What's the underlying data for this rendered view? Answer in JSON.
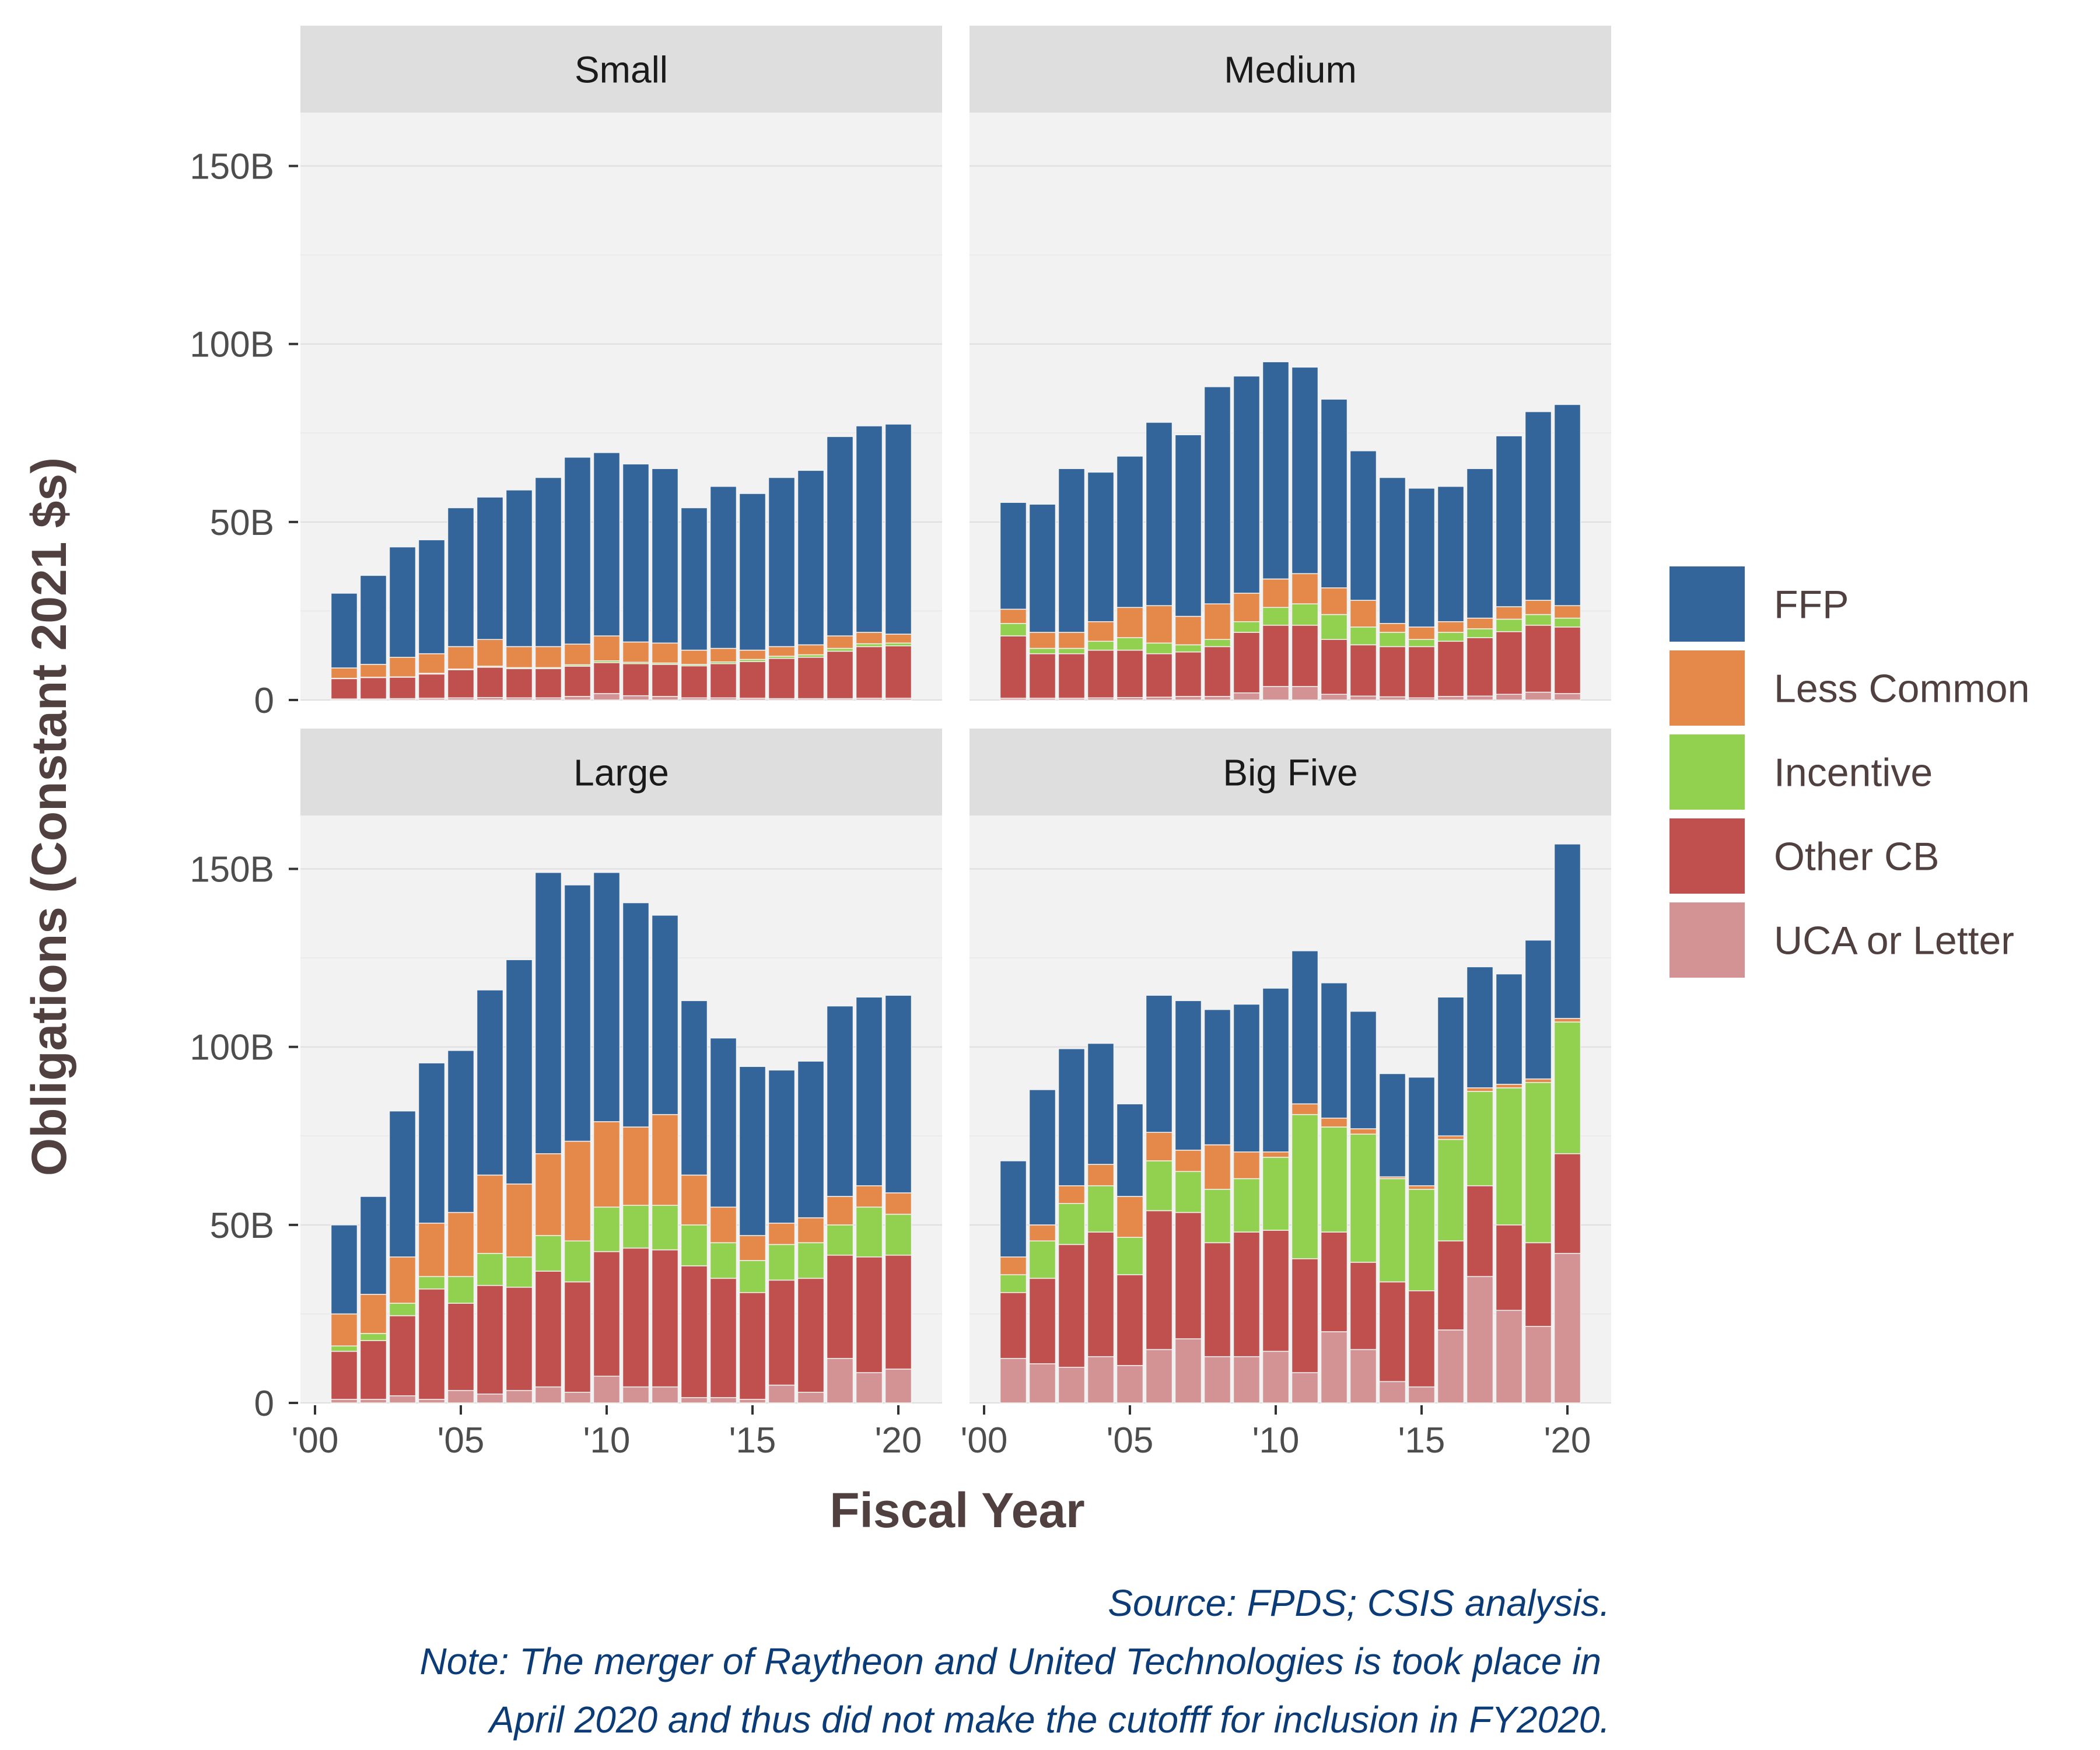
{
  "chart_data": {
    "type": "bar",
    "stacked": true,
    "xlabel": "Fiscal Year",
    "ylabel": "Obligations (Constant 2021 $s)",
    "ylim": [
      0,
      165000000000
    ],
    "y_ticks": [
      0,
      50000000000,
      100000000000,
      150000000000
    ],
    "y_tick_labels": [
      "0",
      "50B",
      "100B",
      "150B"
    ],
    "x_ticks": [
      2000,
      2005,
      2010,
      2015,
      2020
    ],
    "x_tick_labels": [
      "'00",
      "'05",
      "'10",
      "'15",
      "'20"
    ],
    "xlim": [
      1999.5,
      2021.5
    ],
    "grid": true,
    "legend_position": "right",
    "series_order": [
      "UCA or Letter",
      "Other CB",
      "Incentive",
      "Less Common",
      "FFP"
    ],
    "legend": [
      {
        "name": "FFP",
        "color": "#33659a"
      },
      {
        "name": "Less Common",
        "color": "#e5894a"
      },
      {
        "name": "Incentive",
        "color": "#92d050"
      },
      {
        "name": "Other CB",
        "color": "#c0504d"
      },
      {
        "name": "UCA or Letter",
        "color": "#d39394"
      }
    ],
    "years": [
      2001,
      2002,
      2003,
      2004,
      2005,
      2006,
      2007,
      2008,
      2009,
      2010,
      2011,
      2012,
      2013,
      2014,
      2015,
      2016,
      2017,
      2018,
      2019,
      2020
    ],
    "units": "billions of constant 2021 dollars",
    "panels": [
      {
        "name": "Small",
        "series": [
          {
            "name": "UCA or Letter",
            "values": [
              0.3,
              0.3,
              0.4,
              0.5,
              0.6,
              0.7,
              0.6,
              0.6,
              1.0,
              1.8,
              1.2,
              1.0,
              0.6,
              0.6,
              0.5,
              0.4,
              0.4,
              0.4,
              0.5,
              0.5
            ]
          },
          {
            "name": "Other CB",
            "values": [
              5.7,
              6.0,
              6.0,
              6.8,
              7.9,
              8.5,
              8.2,
              8.2,
              8.5,
              8.7,
              9.0,
              9.0,
              9.0,
              9.6,
              10.3,
              11.3,
              11.6,
              13.3,
              14.5,
              14.7
            ]
          },
          {
            "name": "Incentive",
            "values": [
              0.1,
              0.1,
              0.1,
              0.2,
              0.2,
              0.3,
              0.3,
              0.3,
              0.4,
              0.5,
              0.4,
              0.4,
              0.4,
              0.5,
              0.6,
              0.6,
              0.7,
              0.8,
              0.8,
              0.8
            ]
          },
          {
            "name": "Less Common",
            "values": [
              2.9,
              3.6,
              5.5,
              5.5,
              6.3,
              7.5,
              5.9,
              5.9,
              5.8,
              7.0,
              5.7,
              5.6,
              4.0,
              3.8,
              2.6,
              2.7,
              2.8,
              3.5,
              3.2,
              2.5
            ]
          },
          {
            "name": "FFP",
            "values": [
              21.0,
              25.0,
              31.0,
              32.0,
              39.0,
              40.0,
              44.0,
              47.5,
              52.5,
              51.5,
              50.0,
              49.0,
              40.0,
              45.5,
              44.0,
              47.5,
              49.0,
              56.0,
              58.0,
              59.0
            ]
          }
        ]
      },
      {
        "name": "Medium",
        "series": [
          {
            "name": "UCA or Letter",
            "values": [
              0.5,
              0.5,
              0.5,
              0.6,
              0.7,
              0.8,
              1.0,
              1.0,
              2.0,
              3.8,
              3.8,
              1.6,
              1.1,
              0.9,
              0.6,
              1.0,
              1.1,
              1.6,
              2.2,
              1.8
            ]
          },
          {
            "name": "Other CB",
            "values": [
              17.5,
              12.5,
              12.5,
              13.4,
              13.3,
              12.2,
              12.5,
              14.0,
              17.0,
              17.2,
              17.2,
              15.4,
              14.4,
              14.1,
              14.4,
              15.5,
              16.4,
              17.6,
              18.8,
              18.7
            ]
          },
          {
            "name": "Incentive",
            "values": [
              3.5,
              1.5,
              1.5,
              2.5,
              3.5,
              3.0,
              2.0,
              2.0,
              3.0,
              5.0,
              6.0,
              7.0,
              5.0,
              4.0,
              2.0,
              2.5,
              2.5,
              3.5,
              3.0,
              2.5
            ]
          },
          {
            "name": "Less Common",
            "values": [
              4.0,
              4.5,
              4.5,
              5.5,
              8.5,
              10.5,
              8.0,
              10.0,
              8.0,
              8.0,
              8.5,
              7.5,
              7.5,
              2.5,
              3.5,
              3.0,
              3.0,
              3.5,
              4.0,
              3.5
            ]
          },
          {
            "name": "FFP",
            "values": [
              30.0,
              36.0,
              46.0,
              42.0,
              42.5,
              51.5,
              51.0,
              61.0,
              61.0,
              61.0,
              58.0,
              53.0,
              42.0,
              41.0,
              39.0,
              38.0,
              42.0,
              48.0,
              53.0,
              56.5
            ]
          }
        ]
      },
      {
        "name": "Large",
        "series": [
          {
            "name": "UCA or Letter",
            "values": [
              1.0,
              1.0,
              2.0,
              1.0,
              3.5,
              2.5,
              3.5,
              4.5,
              3.0,
              7.5,
              4.5,
              4.5,
              1.5,
              1.5,
              1.0,
              5.0,
              3.0,
              12.5,
              8.5,
              9.5
            ]
          },
          {
            "name": "Other CB",
            "values": [
              13.5,
              16.5,
              22.5,
              31.0,
              24.5,
              30.5,
              29.0,
              32.5,
              31.0,
              35.0,
              39.0,
              38.5,
              37.0,
              33.5,
              30.0,
              29.5,
              32.0,
              29.0,
              32.5,
              32.0
            ]
          },
          {
            "name": "Incentive",
            "values": [
              1.5,
              2.0,
              3.5,
              3.5,
              7.5,
              9.0,
              8.5,
              10.0,
              11.5,
              12.5,
              12.0,
              12.5,
              11.5,
              10.0,
              9.0,
              10.0,
              10.0,
              8.5,
              14.0,
              11.5
            ]
          },
          {
            "name": "Less Common",
            "values": [
              9.0,
              11.0,
              13.0,
              15.0,
              18.0,
              22.0,
              20.5,
              23.0,
              28.0,
              24.0,
              22.0,
              25.5,
              14.0,
              10.0,
              7.0,
              6.0,
              7.0,
              8.0,
              6.0,
              6.0
            ]
          },
          {
            "name": "FFP",
            "values": [
              25.0,
              27.5,
              41.0,
              45.0,
              45.5,
              52.0,
              63.0,
              79.0,
              72.0,
              70.0,
              63.0,
              56.0,
              49.0,
              47.5,
              47.5,
              43.0,
              44.0,
              53.5,
              53.0,
              55.5
            ]
          }
        ]
      },
      {
        "name": "Big Five",
        "series": [
          {
            "name": "UCA or Letter",
            "values": [
              12.5,
              11.0,
              10.0,
              13.0,
              10.5,
              15.0,
              18.0,
              13.0,
              13.0,
              14.5,
              8.5,
              20.0,
              15.0,
              6.0,
              4.5,
              20.5,
              35.5,
              26.0,
              21.5,
              42.0
            ]
          },
          {
            "name": "Other CB",
            "values": [
              18.5,
              24.0,
              34.5,
              35.0,
              25.5,
              39.0,
              35.5,
              32.0,
              35.0,
              34.0,
              32.0,
              28.0,
              24.5,
              28.0,
              27.0,
              25.0,
              25.5,
              24.0,
              23.5,
              28.0
            ]
          },
          {
            "name": "Incentive",
            "values": [
              5.0,
              10.5,
              11.5,
              13.0,
              10.5,
              14.0,
              11.5,
              15.0,
              15.0,
              20.5,
              40.5,
              29.5,
              36.0,
              29.0,
              28.5,
              28.5,
              26.5,
              38.5,
              45.0,
              37.0
            ]
          },
          {
            "name": "Less Common",
            "values": [
              5.0,
              4.5,
              5.0,
              6.0,
              11.5,
              8.0,
              6.0,
              12.5,
              7.5,
              1.5,
              3.0,
              2.5,
              1.5,
              0.5,
              1.0,
              1.0,
              1.0,
              1.0,
              1.0,
              1.0
            ]
          },
          {
            "name": "FFP",
            "values": [
              27.0,
              38.0,
              38.5,
              34.0,
              26.0,
              38.5,
              42.0,
              38.0,
              41.5,
              46.0,
              43.0,
              38.0,
              33.0,
              29.0,
              30.5,
              39.0,
              34.0,
              31.0,
              39.0,
              49.0
            ]
          }
        ]
      }
    ]
  },
  "caption": {
    "line1": "Source: FPDS; CSIS analysis.",
    "line2": "Note: The merger of Raytheon and United Technologies is took place in",
    "line3": "April 2020 and thus did not make the cutofff for inclusion in FY2020."
  }
}
